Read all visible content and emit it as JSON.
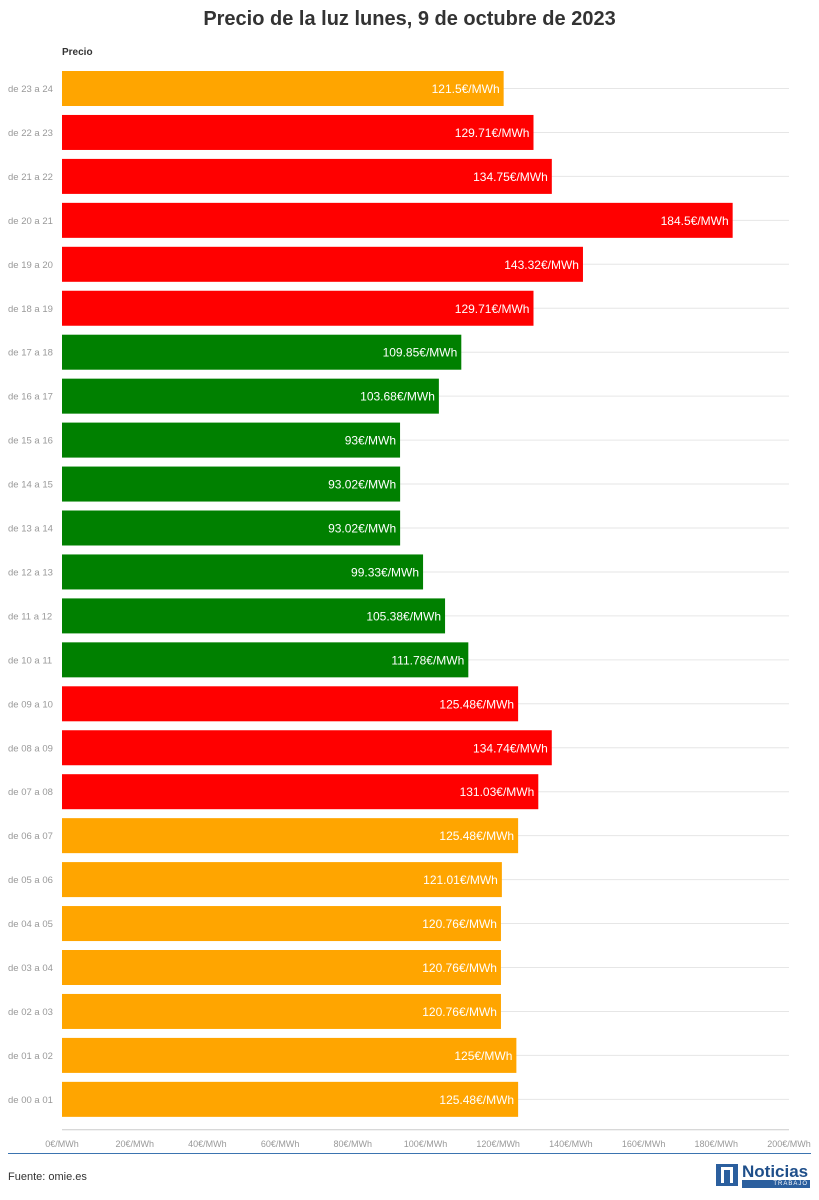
{
  "title": "Precio de la luz lunes, 9 de octubre de 2023",
  "source": "Fuente: omie.es",
  "logo": {
    "main": "Noticias",
    "sub": "TRABAJO"
  },
  "colors": {
    "high": "#ff0000",
    "mid": "#ffa500",
    "low": "#008000",
    "grid": "#e6e6e6",
    "axis_text": "#999999"
  },
  "chart_data": {
    "type": "bar",
    "orientation": "horizontal",
    "title": "Precio de la luz lunes, 9 de octubre de 2023",
    "ylabel": "Precio",
    "xlim": [
      0,
      200
    ],
    "x_ticks": [
      {
        "value": 0,
        "label": "0€/MWh"
      },
      {
        "value": 20,
        "label": "20€/MWh"
      },
      {
        "value": 40,
        "label": "40€/MWh"
      },
      {
        "value": 60,
        "label": "60€/MWh"
      },
      {
        "value": 80,
        "label": "80€/MWh"
      },
      {
        "value": 100,
        "label": "100€/MWh"
      },
      {
        "value": 120,
        "label": "120€/MWh"
      },
      {
        "value": 140,
        "label": "140€/MWh"
      },
      {
        "value": 160,
        "label": "160€/MWh"
      },
      {
        "value": 180,
        "label": "180€/MWh"
      },
      {
        "value": 200,
        "label": "200€/MWh"
      }
    ],
    "categories": [
      "de 23 a 24",
      "de 22 a 23",
      "de 21 a 22",
      "de 20 a 21",
      "de 19 a 20",
      "de 18 a 19",
      "de 17 a 18",
      "de 16 a 17",
      "de 15 a 16",
      "de 14 a 15",
      "de 13 a 14",
      "de 12 a 13",
      "de 11 a 12",
      "de 10 a 11",
      "de 09 a 10",
      "de 08 a 09",
      "de 07 a 08",
      "de 06 a 07",
      "de 05 a 06",
      "de 04 a 05",
      "de 03 a 04",
      "de 02 a 03",
      "de 01 a 02",
      "de 00 a 01"
    ],
    "values": [
      121.5,
      129.71,
      134.75,
      184.5,
      143.32,
      129.71,
      109.85,
      103.68,
      93,
      93.02,
      93.02,
      99.33,
      105.38,
      111.78,
      125.48,
      134.74,
      131.03,
      125.48,
      121.01,
      120.76,
      120.76,
      120.76,
      125,
      125.48
    ],
    "labels": [
      "121.5€/MWh",
      "129.71€/MWh",
      "134.75€/MWh",
      "184.5€/MWh",
      "143.32€/MWh",
      "129.71€/MWh",
      "109.85€/MWh",
      "103.68€/MWh",
      "93€/MWh",
      "93.02€/MWh",
      "93.02€/MWh",
      "99.33€/MWh",
      "105.38€/MWh",
      "111.78€/MWh",
      "125.48€/MWh",
      "134.74€/MWh",
      "131.03€/MWh",
      "125.48€/MWh",
      "121.01€/MWh",
      "120.76€/MWh",
      "120.76€/MWh",
      "120.76€/MWh",
      "125€/MWh",
      "125.48€/MWh"
    ],
    "bar_colors": [
      "#ffa500",
      "#ff0000",
      "#ff0000",
      "#ff0000",
      "#ff0000",
      "#ff0000",
      "#008000",
      "#008000",
      "#008000",
      "#008000",
      "#008000",
      "#008000",
      "#008000",
      "#008000",
      "#ff0000",
      "#ff0000",
      "#ff0000",
      "#ffa500",
      "#ffa500",
      "#ffa500",
      "#ffa500",
      "#ffa500",
      "#ffa500",
      "#ffa500"
    ],
    "grid": true,
    "legend": "none"
  }
}
